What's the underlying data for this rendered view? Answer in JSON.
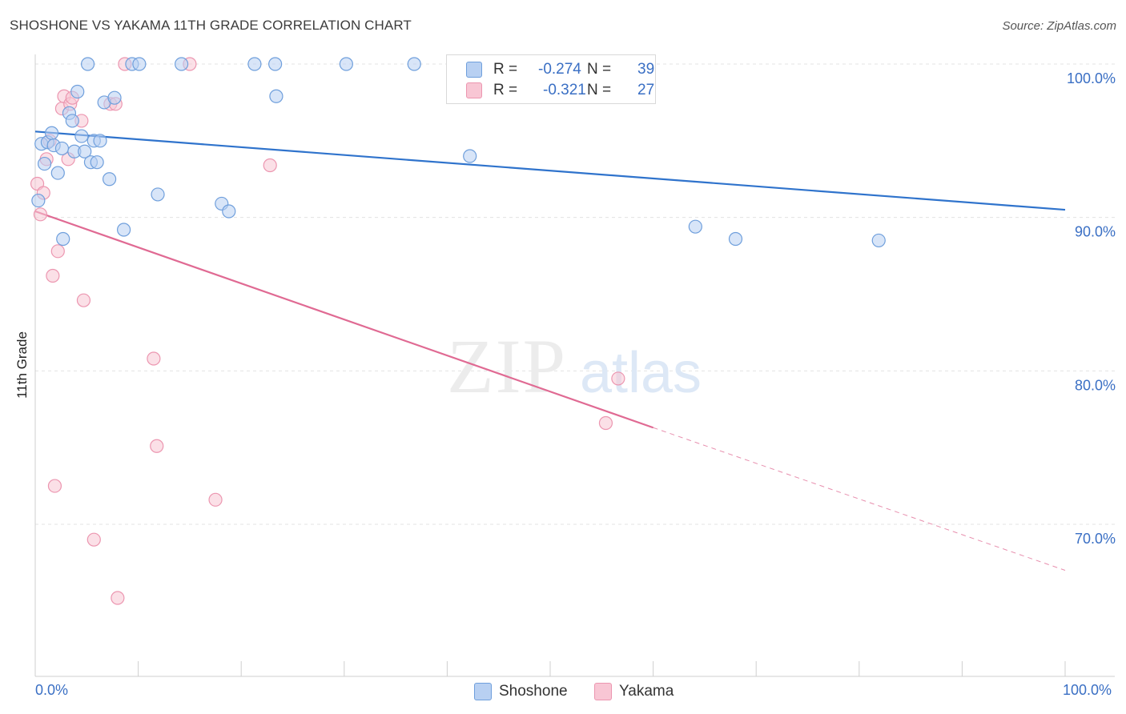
{
  "header": {
    "title": "SHOSHONE VS YAKAMA 11TH GRADE CORRELATION CHART",
    "source": "Source: ZipAtlas.com"
  },
  "watermark": {
    "zip": "ZIP",
    "atlas": "atlas"
  },
  "legend": {
    "r_label": "R =",
    "n_label": "N =",
    "shoshone": {
      "r": "-0.274",
      "n": "39"
    },
    "yakama": {
      "r": "-0.321",
      "n": "27"
    }
  },
  "colors": {
    "shoshone_fill": "#b8d0f2",
    "shoshone_stroke": "#6f9fdc",
    "shoshone_line": "#2f73cc",
    "yakama_fill": "#f8c6d4",
    "yakama_stroke": "#ec96b0",
    "yakama_line": "#e06a93",
    "tick_label": "#3a6fc4",
    "grid": "#e3e3e3"
  },
  "chart_data": {
    "type": "scatter",
    "title": "SHOSHONE VS YAKAMA 11TH GRADE CORRELATION CHART",
    "xlabel": "",
    "ylabel": "11th Grade",
    "xlim": [
      0,
      100
    ],
    "ylim": [
      60.2,
      102.8
    ],
    "x_tick_labels": [
      "0.0%",
      "100.0%"
    ],
    "y_ticks": [
      70,
      80,
      90,
      100
    ],
    "y_tick_labels": [
      "70.0%",
      "80.0%",
      "90.0%",
      "100.0%"
    ],
    "grid": true,
    "legend_placement": "top-center",
    "series": [
      {
        "name": "Shoshone",
        "r": -0.274,
        "n": 39,
        "trend": {
          "x": [
            0,
            100
          ],
          "y": [
            95.6,
            90.5
          ]
        },
        "points": [
          [
            0.3,
            91.1
          ],
          [
            0.6,
            94.8
          ],
          [
            0.9,
            93.5
          ],
          [
            1.2,
            94.9
          ],
          [
            1.6,
            95.5
          ],
          [
            1.8,
            94.7
          ],
          [
            2.2,
            92.9
          ],
          [
            2.6,
            94.5
          ],
          [
            2.7,
            88.6
          ],
          [
            3.3,
            96.8
          ],
          [
            3.6,
            96.3
          ],
          [
            3.8,
            94.3
          ],
          [
            4.1,
            98.2
          ],
          [
            4.5,
            95.3
          ],
          [
            4.8,
            94.3
          ],
          [
            5.1,
            100.0
          ],
          [
            5.4,
            93.6
          ],
          [
            5.7,
            95.0
          ],
          [
            6.0,
            93.6
          ],
          [
            6.3,
            95.0
          ],
          [
            6.7,
            97.5
          ],
          [
            7.2,
            92.5
          ],
          [
            7.7,
            97.8
          ],
          [
            8.6,
            89.2
          ],
          [
            9.4,
            100.0
          ],
          [
            10.1,
            100.0
          ],
          [
            11.9,
            91.5
          ],
          [
            14.2,
            100.0
          ],
          [
            18.1,
            90.9
          ],
          [
            18.8,
            90.4
          ],
          [
            21.3,
            100.0
          ],
          [
            23.3,
            100.0
          ],
          [
            23.4,
            97.9
          ],
          [
            30.2,
            100.0
          ],
          [
            36.8,
            100.0
          ],
          [
            42.2,
            94.0
          ],
          [
            64.1,
            89.4
          ],
          [
            68.0,
            88.6
          ],
          [
            81.9,
            88.5
          ]
        ]
      },
      {
        "name": "Yakama",
        "r": -0.321,
        "n": 27,
        "trend": {
          "x": [
            0,
            60
          ],
          "y": [
            90.4,
            76.3
          ]
        },
        "trend_dashed": {
          "x": [
            60,
            100
          ],
          "y": [
            76.3,
            67.0
          ]
        },
        "points": [
          [
            0.2,
            92.2
          ],
          [
            0.5,
            90.2
          ],
          [
            0.8,
            91.6
          ],
          [
            1.1,
            93.8
          ],
          [
            1.4,
            95.0
          ],
          [
            1.7,
            86.2
          ],
          [
            1.9,
            72.5
          ],
          [
            2.2,
            87.8
          ],
          [
            2.6,
            97.1
          ],
          [
            2.8,
            97.9
          ],
          [
            3.2,
            93.8
          ],
          [
            3.4,
            97.4
          ],
          [
            3.6,
            97.8
          ],
          [
            4.5,
            96.3
          ],
          [
            4.7,
            84.6
          ],
          [
            5.7,
            69.0
          ],
          [
            7.3,
            97.4
          ],
          [
            7.8,
            97.4
          ],
          [
            8.0,
            65.2
          ],
          [
            8.7,
            100.0
          ],
          [
            11.5,
            80.8
          ],
          [
            11.8,
            75.1
          ],
          [
            15.0,
            100.0
          ],
          [
            17.5,
            71.6
          ],
          [
            22.8,
            93.4
          ],
          [
            55.4,
            76.6
          ],
          [
            56.6,
            79.5
          ]
        ]
      }
    ]
  }
}
